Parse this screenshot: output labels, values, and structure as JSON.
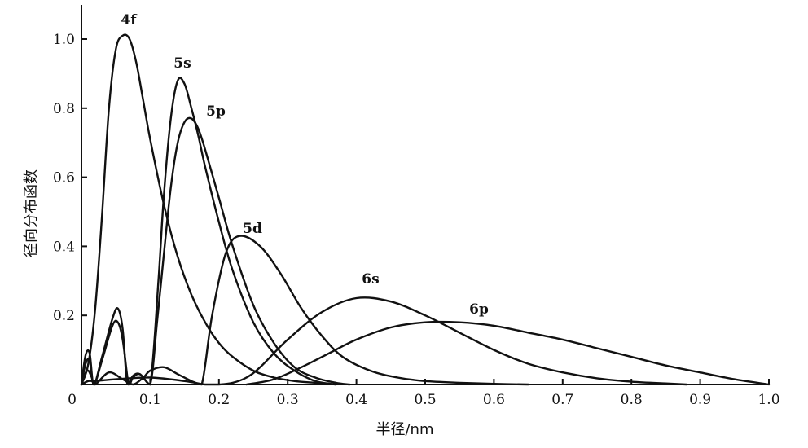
{
  "chart_data": {
    "type": "line",
    "title": "",
    "xlabel": "半径/nm",
    "ylabel": "径向分布函数",
    "xlim": [
      0,
      1.0
    ],
    "ylim": [
      0,
      1.1
    ],
    "grid": false,
    "x_ticks": [
      "0",
      "0.1",
      "0.2",
      "0.3",
      "0.4",
      "0.5",
      "0.6",
      "0.7",
      "0.8",
      "0.9",
      "1.0"
    ],
    "y_ticks": [
      "0.2",
      "0.4",
      "0.6",
      "0.8",
      "1.0"
    ],
    "series": [
      {
        "name": "4f",
        "x": [
          0.0,
          0.01,
          0.02,
          0.03,
          0.04,
          0.05,
          0.06,
          0.07,
          0.08,
          0.09,
          0.1,
          0.12,
          0.14,
          0.16,
          0.18,
          0.2,
          0.22,
          0.25,
          0.28,
          0.31,
          0.34,
          0.37
        ],
        "values": [
          0.0,
          0.06,
          0.22,
          0.49,
          0.8,
          0.97,
          1.01,
          1.0,
          0.93,
          0.82,
          0.71,
          0.52,
          0.37,
          0.26,
          0.18,
          0.12,
          0.08,
          0.04,
          0.02,
          0.01,
          0.005,
          0.0
        ]
      },
      {
        "name": "5s",
        "x": [
          0.0,
          0.006,
          0.012,
          0.018,
          0.03,
          0.045,
          0.053,
          0.06,
          0.065,
          0.068,
          0.075,
          0.085,
          0.1,
          0.112,
          0.12,
          0.13,
          0.14,
          0.15,
          0.16,
          0.17,
          0.18,
          0.2,
          0.22,
          0.25,
          0.28,
          0.31,
          0.34,
          0.37
        ],
        "values": [
          0.0,
          0.085,
          0.09,
          0.0,
          0.08,
          0.19,
          0.22,
          0.16,
          0.03,
          0.0,
          0.025,
          0.03,
          0.0,
          0.3,
          0.55,
          0.77,
          0.88,
          0.87,
          0.8,
          0.72,
          0.63,
          0.47,
          0.33,
          0.18,
          0.09,
          0.04,
          0.01,
          0.0
        ]
      },
      {
        "name": "5p",
        "x": [
          0.0,
          0.006,
          0.012,
          0.018,
          0.03,
          0.045,
          0.053,
          0.06,
          0.067,
          0.07,
          0.075,
          0.085,
          0.1,
          0.11,
          0.12,
          0.13,
          0.14,
          0.15,
          0.16,
          0.17,
          0.18,
          0.2,
          0.22,
          0.25,
          0.28,
          0.31,
          0.34,
          0.37,
          0.39
        ],
        "values": [
          0.0,
          0.06,
          0.07,
          0.0,
          0.07,
          0.17,
          0.18,
          0.13,
          0.02,
          0.0,
          0.02,
          0.03,
          0.0,
          0.18,
          0.38,
          0.57,
          0.7,
          0.76,
          0.77,
          0.74,
          0.68,
          0.54,
          0.4,
          0.23,
          0.12,
          0.05,
          0.02,
          0.005,
          0.0
        ]
      },
      {
        "name": "5d",
        "x": [
          0.0,
          0.005,
          0.01,
          0.015,
          0.02,
          0.04,
          0.06,
          0.075,
          0.09,
          0.1,
          0.12,
          0.14,
          0.16,
          0.175,
          0.19,
          0.21,
          0.23,
          0.26,
          0.29,
          0.32,
          0.35,
          0.38,
          0.42,
          0.46,
          0.5,
          0.55,
          0.6,
          0.65
        ],
        "values": [
          0.0,
          0.03,
          0.04,
          0.02,
          0.0,
          0.035,
          0.015,
          0.0,
          0.02,
          0.04,
          0.05,
          0.03,
          0.01,
          0.0,
          0.2,
          0.38,
          0.43,
          0.4,
          0.32,
          0.22,
          0.14,
          0.08,
          0.04,
          0.02,
          0.01,
          0.005,
          0.002,
          0.0
        ]
      },
      {
        "name": "6s",
        "x": [
          0.0,
          0.01,
          0.02,
          0.05,
          0.1,
          0.15,
          0.18,
          0.2,
          0.22,
          0.24,
          0.26,
          0.3,
          0.35,
          0.4,
          0.45,
          0.5,
          0.55,
          0.6,
          0.65,
          0.7,
          0.75,
          0.8,
          0.85,
          0.88
        ],
        "values": [
          0.0,
          0.01,
          0.01,
          0.015,
          0.02,
          0.01,
          0.0,
          0.0,
          0.005,
          0.02,
          0.05,
          0.13,
          0.21,
          0.25,
          0.24,
          0.2,
          0.15,
          0.1,
          0.06,
          0.035,
          0.018,
          0.008,
          0.003,
          0.0
        ]
      },
      {
        "name": "6p",
        "x": [
          0.24,
          0.28,
          0.32,
          0.36,
          0.4,
          0.45,
          0.5,
          0.55,
          0.6,
          0.65,
          0.7,
          0.75,
          0.8,
          0.85,
          0.9,
          0.95,
          1.0
        ],
        "values": [
          0.0,
          0.015,
          0.05,
          0.09,
          0.13,
          0.165,
          0.18,
          0.18,
          0.17,
          0.15,
          0.13,
          0.105,
          0.08,
          0.055,
          0.035,
          0.015,
          0.0
        ]
      }
    ]
  }
}
